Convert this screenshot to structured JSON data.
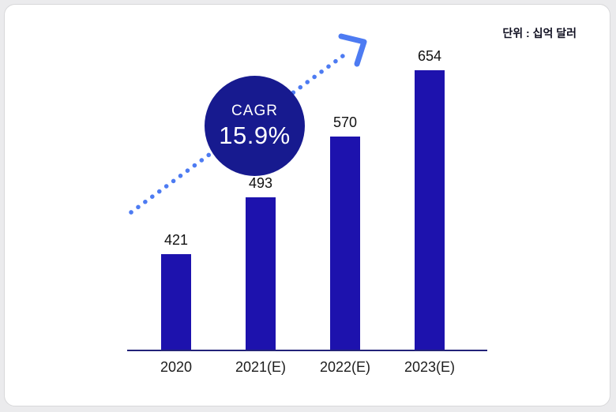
{
  "unit_label": "단위 : 십억 달러",
  "cagr": {
    "label": "CAGR",
    "value": "15.9%"
  },
  "colors": {
    "bar": "#1d12ad",
    "cagr_circle": "#171a8f",
    "arrow": "#4d7bf2",
    "axis": "#232379",
    "card_background": "#ffffff",
    "page_background": "#ebebed"
  },
  "chart_data": {
    "type": "bar",
    "categories": [
      "2020",
      "2021(E)",
      "2022(E)",
      "2023(E)"
    ],
    "values": [
      421,
      493,
      570,
      654
    ],
    "title": "",
    "xlabel": "",
    "ylabel": "단위 : 십억 달러",
    "ylim": [
      300,
      700
    ],
    "grid": false,
    "legend": "none",
    "annotations": [
      "CAGR 15.9%"
    ],
    "value_labels_shown": true
  }
}
